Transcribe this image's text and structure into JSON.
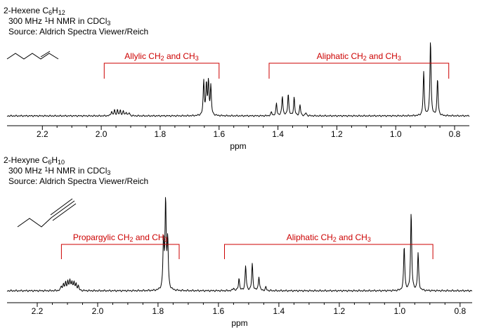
{
  "chart_data": [
    {
      "type": "line",
      "caption": [
        {
          "parts": [
            {
              "t": "2-Hexene C"
            },
            {
              "t": "6",
              "sub": true
            },
            {
              "t": "H"
            },
            {
              "t": "12",
              "sub": true
            }
          ]
        },
        {
          "parts": [
            {
              "t": "300 MHz "
            },
            {
              "t": "1",
              "sup": true
            },
            {
              "t": "H NMR in CDCl"
            },
            {
              "t": "3",
              "sub": true
            }
          ]
        },
        {
          "parts": [
            {
              "t": "Source: Aldrich Spectra Viewer/Reich"
            }
          ]
        }
      ],
      "xlabel": "ppm",
      "xlim": [
        2.32,
        0.75
      ],
      "x_reversed": true,
      "ticks": [
        "2.2",
        "2.0",
        "1.8",
        "1.6",
        "1.4",
        "1.2",
        "1.0",
        "0.8"
      ],
      "y_units": "relative intensity (tallest peak = 1)",
      "peaks": [
        {
          "x": 1.965,
          "h": 0.06
        },
        {
          "x": 1.955,
          "h": 0.07
        },
        {
          "x": 1.945,
          "h": 0.075
        },
        {
          "x": 1.935,
          "h": 0.07
        },
        {
          "x": 1.925,
          "h": 0.06
        },
        {
          "x": 1.915,
          "h": 0.05
        },
        {
          "x": 1.905,
          "h": 0.04
        },
        {
          "x": 1.652,
          "h": 0.45
        },
        {
          "x": 1.643,
          "h": 0.4
        },
        {
          "x": 1.636,
          "h": 0.43
        },
        {
          "x": 1.628,
          "h": 0.38
        },
        {
          "x": 1.422,
          "h": 0.05
        },
        {
          "x": 1.405,
          "h": 0.16
        },
        {
          "x": 1.385,
          "h": 0.26
        },
        {
          "x": 1.365,
          "h": 0.29
        },
        {
          "x": 1.345,
          "h": 0.24
        },
        {
          "x": 1.325,
          "h": 0.14
        },
        {
          "x": 1.305,
          "h": 0.04
        },
        {
          "x": 0.905,
          "h": 0.57
        },
        {
          "x": 0.882,
          "h": 1.0
        },
        {
          "x": 0.858,
          "h": 0.48
        }
      ],
      "annotations": [
        {
          "parts": [
            {
              "t": "Allylic CH"
            },
            {
              "t": "2",
              "sub": true
            },
            {
              "t": " and CH"
            },
            {
              "t": "3",
              "sub": true
            }
          ],
          "from": 1.99,
          "to": 1.6,
          "color": "#cc0000"
        },
        {
          "parts": [
            {
              "t": "Aliphatic CH"
            },
            {
              "t": "2",
              "sub": true
            },
            {
              "t": " and CH"
            },
            {
              "t": "3",
              "sub": true
            }
          ],
          "from": 1.43,
          "to": 0.82,
          "color": "#cc0000"
        }
      ]
    },
    {
      "type": "line",
      "caption": [
        {
          "parts": [
            {
              "t": "2-Hexyne C"
            },
            {
              "t": "6",
              "sub": true
            },
            {
              "t": "H"
            },
            {
              "t": "10",
              "sub": true
            }
          ]
        },
        {
          "parts": [
            {
              "t": "300 MHz "
            },
            {
              "t": "1",
              "sup": true
            },
            {
              "t": "H NMR in CDCl"
            },
            {
              "t": "3",
              "sub": true
            }
          ]
        },
        {
          "parts": [
            {
              "t": "Source: Aldrich Spectra Viewer/Reich"
            }
          ]
        }
      ],
      "xlabel": "ppm",
      "xlim": [
        2.3,
        0.76
      ],
      "x_reversed": true,
      "ticks": [
        "2.2",
        "2.0",
        "1.8",
        "1.6",
        "1.4",
        "1.2",
        "1.0",
        "0.8"
      ],
      "y_units": "relative intensity (tallest peak = 1)",
      "peaks": [
        {
          "x": 2.12,
          "h": 0.05
        },
        {
          "x": 2.113,
          "h": 0.07
        },
        {
          "x": 2.106,
          "h": 0.08
        },
        {
          "x": 2.099,
          "h": 0.1
        },
        {
          "x": 2.092,
          "h": 0.11
        },
        {
          "x": 2.085,
          "h": 0.1
        },
        {
          "x": 2.078,
          "h": 0.09
        },
        {
          "x": 2.071,
          "h": 0.07
        },
        {
          "x": 2.064,
          "h": 0.05
        },
        {
          "x": 1.782,
          "h": 0.55
        },
        {
          "x": 1.775,
          "h": 1.0
        },
        {
          "x": 1.768,
          "h": 0.55
        },
        {
          "x": 1.55,
          "h": 0.03
        },
        {
          "x": 1.532,
          "h": 0.14
        },
        {
          "x": 1.51,
          "h": 0.28
        },
        {
          "x": 1.488,
          "h": 0.3
        },
        {
          "x": 1.466,
          "h": 0.16
        },
        {
          "x": 1.443,
          "h": 0.04
        },
        {
          "x": 0.985,
          "h": 0.5
        },
        {
          "x": 0.962,
          "h": 0.88
        },
        {
          "x": 0.939,
          "h": 0.42
        }
      ],
      "annotations": [
        {
          "parts": [
            {
              "t": "Propargylic CH"
            },
            {
              "t": "2",
              "sub": true
            },
            {
              "t": " and CH"
            },
            {
              "t": "3",
              "sub": true
            }
          ],
          "from": 2.12,
          "to": 1.73,
          "color": "#cc0000"
        },
        {
          "parts": [
            {
              "t": "Aliphatic CH"
            },
            {
              "t": "2",
              "sub": true
            },
            {
              "t": " and CH"
            },
            {
              "t": "3",
              "sub": true
            }
          ],
          "from": 1.58,
          "to": 0.89,
          "color": "#cc0000"
        }
      ]
    }
  ]
}
